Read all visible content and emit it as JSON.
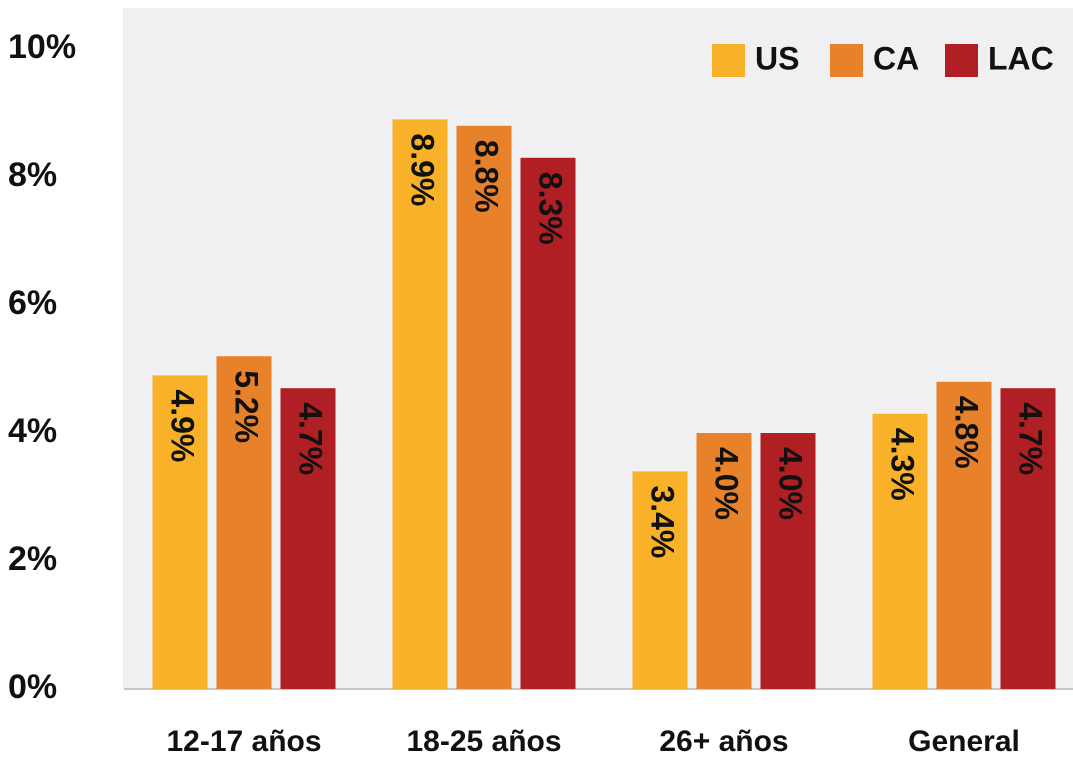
{
  "chart_data": {
    "type": "bar",
    "categories": [
      "12-17 años",
      "18-25 años",
      "26+ años",
      "General"
    ],
    "series": [
      {
        "name": "US",
        "color": "#f9b129",
        "values": [
          4.9,
          8.9,
          3.4,
          4.3
        ],
        "value_labels": [
          "4.9%",
          "8.9%",
          "3.4%",
          "4.3%"
        ]
      },
      {
        "name": "CA",
        "color": "#e8822a",
        "values": [
          5.2,
          8.8,
          4.0,
          4.8
        ],
        "value_labels": [
          "5.2%",
          "8.8%",
          "4.0%",
          "4.8%"
        ]
      },
      {
        "name": "LAC",
        "color": "#b01f24",
        "values": [
          4.7,
          8.3,
          4.0,
          4.7
        ],
        "value_labels": [
          "4.7%",
          "8.3%",
          "4.0%",
          "4.7%"
        ]
      }
    ],
    "ylim": [
      0,
      10
    ],
    "yticks": [
      {
        "value": 0,
        "label": "0%"
      },
      {
        "value": 2,
        "label": "2%"
      },
      {
        "value": 4,
        "label": "4%"
      },
      {
        "value": 6,
        "label": "6%"
      },
      {
        "value": 8,
        "label": "8%"
      },
      {
        "value": 10,
        "label": "10%"
      }
    ],
    "grid": false,
    "legend": "top-right"
  }
}
